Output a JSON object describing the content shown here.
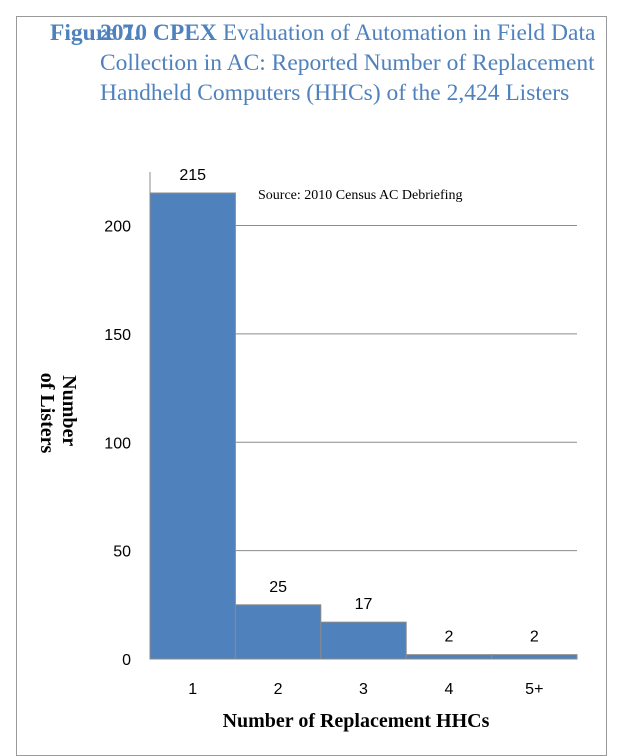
{
  "figure": {
    "number_label": "Figure 7.",
    "title_bold": "2010 CPEX",
    "title_rest": " Evaluation of Automation in Field Data Collection in AC:  Reported Number of Replacement Handheld Computers (HHCs) of the 2,424 Listers"
  },
  "chart_data": {
    "type": "bar",
    "categories": [
      "1",
      "2",
      "3",
      "4",
      "5+"
    ],
    "values": [
      215,
      25,
      17,
      2,
      2
    ],
    "data_labels": [
      "215",
      "25",
      "17",
      "2",
      "2"
    ],
    "xlabel": "Number of Replacement HHCs",
    "ylabel": "Number of Listers",
    "ylabel_lines": [
      "Number",
      "of Listers"
    ],
    "ylim": [
      0,
      215
    ],
    "yticks": [
      0,
      50,
      100,
      150,
      200
    ],
    "annotation": "Source: 2010 Census AC Debriefing",
    "grid": true,
    "bar_color": "#4f81bd",
    "bar_edge_color": "#8a8a8a"
  }
}
